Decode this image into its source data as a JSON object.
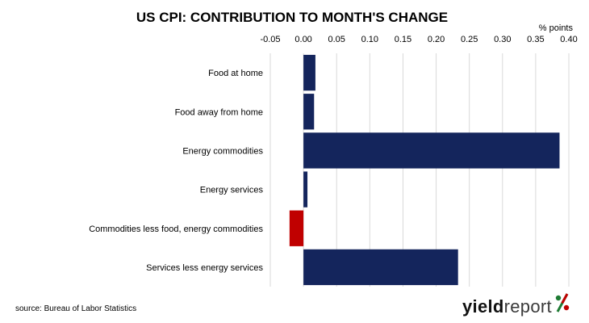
{
  "chart_data": {
    "type": "bar",
    "orientation": "horizontal",
    "title": "US CPI: CONTRIBUTION TO MONTH'S CHANGE",
    "unit_label": "% points",
    "categories": [
      "Food at home",
      "Food away from home",
      "Energy commodities",
      "Energy services",
      "Commodities less food, energy commodities",
      "Services less energy services"
    ],
    "values": [
      0.018,
      0.016,
      0.386,
      0.006,
      -0.021,
      0.233
    ],
    "xlim": [
      -0.05,
      0.4
    ],
    "xticks": [
      "-0.05",
      "0.00",
      "0.05",
      "0.10",
      "0.15",
      "0.20",
      "0.25",
      "0.30",
      "0.35",
      "0.40"
    ],
    "xtick_values": [
      -0.05,
      0.0,
      0.05,
      0.1,
      0.15,
      0.2,
      0.25,
      0.3,
      0.35,
      0.4
    ],
    "x_axis_position": "top",
    "grid": "vertical",
    "colors": {
      "positive": "#14255c",
      "negative": "#c00000",
      "grid": "#d9d9d9"
    }
  },
  "source": "source: Bureau of Labor Statistics",
  "logo": {
    "word1": "yield",
    "word2": "report",
    "symbol": "%",
    "symbol_colors": [
      "#1e7b34",
      "#c00000"
    ]
  }
}
